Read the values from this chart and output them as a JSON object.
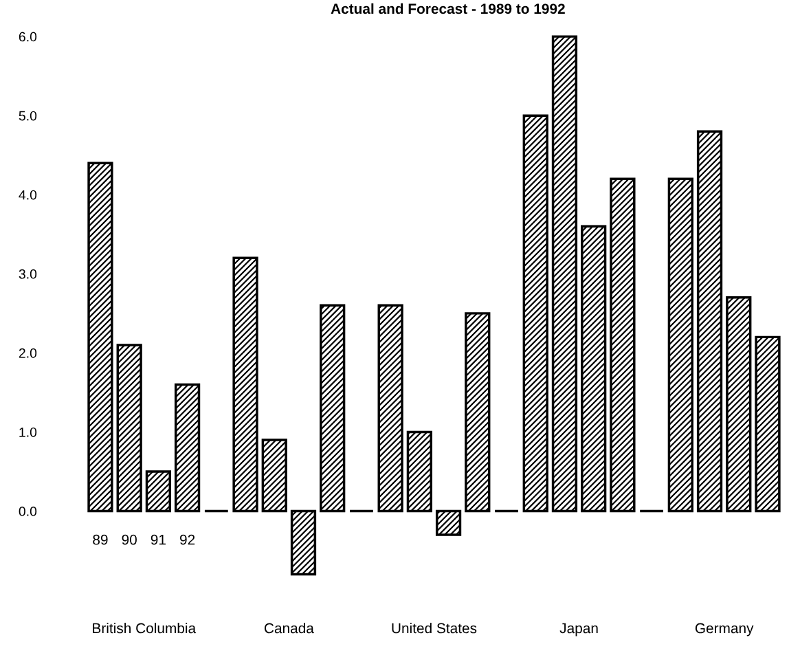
{
  "chart_data": {
    "type": "bar",
    "title": "Actual and Forecast - 1989 to 1992",
    "categories": [
      "89",
      "90",
      "91",
      "92",
      null,
      null,
      null,
      null,
      null,
      null,
      null,
      null,
      null,
      null,
      null,
      null,
      null,
      null,
      null,
      null,
      null,
      null,
      null,
      null
    ],
    "values": [
      4.4,
      2.1,
      0.5,
      1.6,
      0,
      3.2,
      0.9,
      -0.8,
      2.6,
      0,
      2.6,
      1.0,
      -0.3,
      2.5,
      0,
      5.0,
      6.0,
      3.6,
      4.2,
      0,
      4.2,
      4.8,
      2.7,
      2.2
    ],
    "color": "#000000",
    "ylim": [
      -0.8,
      6.0
    ],
    "yticks": [
      {
        "value": 0,
        "label": "0.0"
      },
      {
        "value": 1,
        "label": "1.0"
      },
      {
        "value": 2,
        "label": "2.0"
      },
      {
        "value": 3,
        "label": "3.0"
      },
      {
        "value": 4,
        "label": "4.0"
      },
      {
        "value": 5,
        "label": "5.0"
      },
      {
        "value": 6,
        "label": "6.0"
      }
    ],
    "grid": false,
    "annotations": [
      "British Columbia",
      "Canada",
      "United States",
      "Japan",
      "Germany"
    ]
  }
}
